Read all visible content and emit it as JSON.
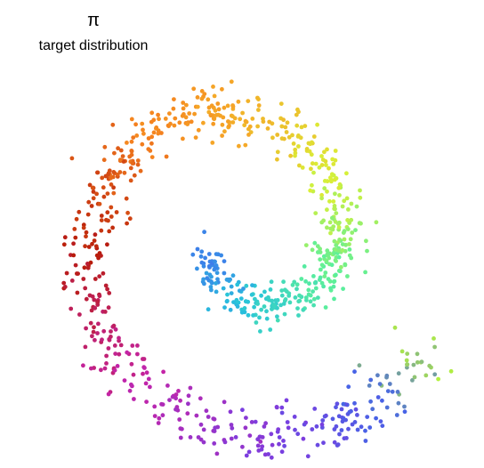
{
  "chart_data": {
    "type": "scatter",
    "title": "π",
    "subtitle": "target distribution",
    "xlabel": "",
    "ylabel": "",
    "grid": false,
    "axes_visible": false,
    "colormap": "turbo (hue follows position along spiral arm)",
    "spiral": {
      "arms": 1,
      "start_angle_deg": 200,
      "end_angle_deg": 690,
      "start_radius": 0.18,
      "end_radius": 1.0,
      "point_count": 900
    },
    "colors": {
      "inner_end": "#3e7bea",
      "cyan": "#27c2dc",
      "green": "#5cf09a",
      "yellow": "#d9f037",
      "orange": "#f5821f",
      "red": "#b81c0b",
      "magenta": "#c424a8",
      "purple": "#7a3ee0",
      "outer_end": "#b6f53a"
    }
  }
}
